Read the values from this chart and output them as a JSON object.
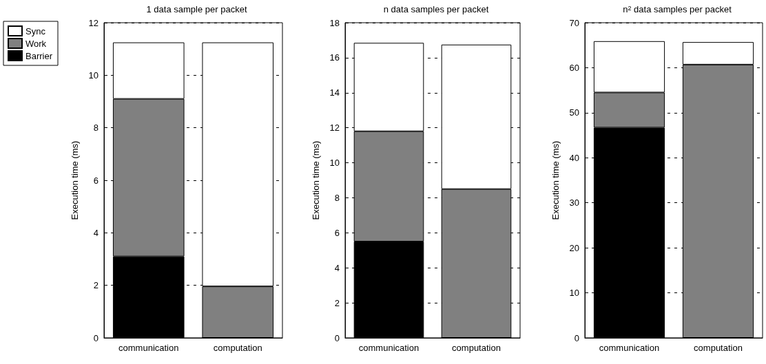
{
  "chart_data": [
    {
      "type": "bar",
      "title": "1 data sample per packet",
      "ylabel": "Execution time (ms)",
      "categories": [
        "communication",
        "computation"
      ],
      "stacked": true,
      "legend": "top left",
      "grid": "y",
      "ylim": [
        0,
        12
      ],
      "yticks": [
        0,
        2,
        4,
        6,
        8,
        10,
        12
      ],
      "series": [
        {
          "name": "Barrier",
          "color": "#000000",
          "values": [
            3.1,
            0
          ]
        },
        {
          "name": "Work",
          "color": "#808080",
          "values": [
            6.0,
            1.96
          ]
        },
        {
          "name": "Sync",
          "color": "#ffffff",
          "values": [
            2.15,
            9.29
          ]
        }
      ]
    },
    {
      "type": "bar",
      "title": "n data samples per packet",
      "ylabel": "Execution time (ms)",
      "categories": [
        "communication",
        "computation"
      ],
      "stacked": true,
      "grid": "y",
      "ylim": [
        0,
        18
      ],
      "yticks": [
        0,
        2,
        4,
        6,
        8,
        10,
        12,
        14,
        16,
        18
      ],
      "series": [
        {
          "color": "#000000",
          "values": [
            5.5,
            0
          ]
        },
        {
          "color": "#808080",
          "values": [
            6.3,
            8.5
          ]
        },
        {
          "color": "#ffffff",
          "values": [
            5.05,
            8.25
          ]
        }
      ]
    },
    {
      "type": "bar",
      "title": "n$^{2}$ data samples per packet",
      "ylabel": "Execution time (ms)",
      "categories": [
        "communication",
        "computation"
      ],
      "stacked": true,
      "grid": "y",
      "ylim": [
        0,
        70
      ],
      "yticks": [
        0,
        10,
        20,
        30,
        40,
        50,
        60,
        70
      ],
      "series": [
        {
          "color": "#000000",
          "values": [
            46.7,
            0
          ]
        },
        {
          "color": "#808080",
          "values": [
            7.8,
            60.7
          ]
        },
        {
          "color": "#ffffff",
          "values": [
            11.4,
            5.0
          ]
        }
      ]
    }
  ]
}
